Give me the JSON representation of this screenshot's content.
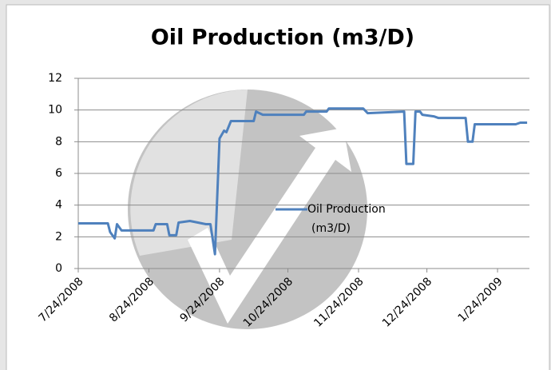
{
  "chart_data": {
    "type": "line",
    "title": "Oil Production (m3/D)",
    "x": [
      "2008-07-24",
      "2008-08-06",
      "2008-08-07",
      "2008-08-09",
      "2008-08-10",
      "2008-08-12",
      "2008-08-26",
      "2008-08-27",
      "2008-09-01",
      "2008-09-02",
      "2008-09-05",
      "2008-09-06",
      "2008-09-11",
      "2008-09-18",
      "2008-09-20",
      "2008-09-22",
      "2008-09-24",
      "2008-09-26",
      "2008-09-27",
      "2008-09-29",
      "2008-10-09",
      "2008-10-10",
      "2008-10-13",
      "2008-10-31",
      "2008-11-01",
      "2008-11-10",
      "2008-11-11",
      "2008-11-26",
      "2008-11-28",
      "2008-12-14",
      "2008-12-15",
      "2008-12-18",
      "2008-12-19",
      "2008-12-21",
      "2008-12-22",
      "2008-12-27",
      "2008-12-29",
      "2009-01-10",
      "2009-01-11",
      "2009-01-13",
      "2009-01-14",
      "2009-02-01",
      "2009-02-03",
      "2009-02-06"
    ],
    "series": [
      {
        "name": "Oil Production (m3/D)",
        "color": "#4f81bd",
        "values": [
          2.85,
          2.85,
          2.3,
          1.9,
          2.8,
          2.4,
          2.4,
          2.8,
          2.8,
          2.1,
          2.1,
          2.9,
          3.0,
          2.8,
          2.8,
          0.9,
          8.2,
          8.7,
          8.6,
          9.3,
          9.3,
          9.9,
          9.7,
          9.7,
          9.9,
          9.9,
          10.1,
          10.1,
          9.8,
          9.9,
          6.6,
          6.6,
          9.9,
          9.9,
          9.7,
          9.6,
          9.5,
          9.5,
          8.0,
          8.0,
          9.1,
          9.1,
          9.2,
          9.2
        ]
      }
    ],
    "xlim": [
      "2008-07-24",
      "2009-02-07"
    ],
    "xticks": [
      {
        "value": "2008-07-24",
        "label": "7/24/2008"
      },
      {
        "value": "2008-08-24",
        "label": "8/24/2008"
      },
      {
        "value": "2008-09-24",
        "label": "9/24/2008"
      },
      {
        "value": "2008-10-24",
        "label": "10/24/2008"
      },
      {
        "value": "2008-11-24",
        "label": "11/24/2008"
      },
      {
        "value": "2008-12-24",
        "label": "12/24/2008"
      },
      {
        "value": "2009-01-24",
        "label": "1/24/2009"
      }
    ],
    "ylim": [
      0,
      12
    ],
    "yticks": [
      0,
      2,
      4,
      6,
      8,
      10,
      12
    ],
    "grid": true,
    "legend": "center"
  }
}
